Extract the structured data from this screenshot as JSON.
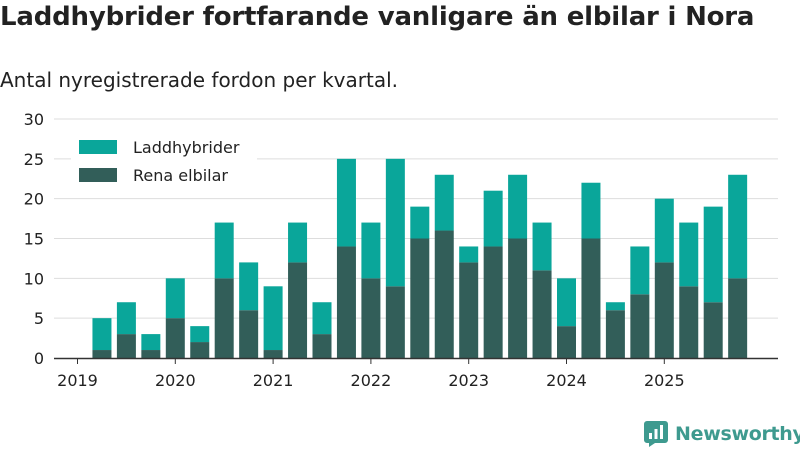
{
  "title": "Laddhybrider fortfarande vanligare än elbilar i Nora",
  "subtitle": "Antal nyregistrerade fordon per kvartal.",
  "brand": "Newsworthy",
  "colors": {
    "hybrid": "#0aa69a",
    "electric": "#325e59",
    "grid": "#dddddd",
    "axis": "#333333",
    "text": "#222222",
    "brand": "#3e9a8f"
  },
  "chart_data": {
    "type": "bar",
    "stacked": true,
    "title": "Laddhybrider fortfarande vanligare än elbilar i Nora",
    "subtitle": "Antal nyregistrerade fordon per kvartal.",
    "xlabel": "",
    "ylabel": "",
    "ylim": [
      0,
      30
    ],
    "yticks": [
      0,
      5,
      10,
      15,
      20,
      25,
      30
    ],
    "grid": true,
    "legend_position": "top-left",
    "x_tick_labels": [
      "2019",
      "2020",
      "2021",
      "2022",
      "2023",
      "2024",
      "2025"
    ],
    "categories": [
      "2019 Q1",
      "2019 Q2",
      "2019 Q3",
      "2019 Q4",
      "2020 Q1",
      "2020 Q2",
      "2020 Q3",
      "2020 Q4",
      "2021 Q1",
      "2021 Q2",
      "2021 Q3",
      "2021 Q4",
      "2022 Q1",
      "2022 Q2",
      "2022 Q3",
      "2022 Q4",
      "2023 Q1",
      "2023 Q2",
      "2023 Q3",
      "2023 Q4",
      "2024 Q1",
      "2024 Q2",
      "2024 Q3",
      "2024 Q4",
      "2025 Q1",
      "2025 Q2",
      "2025 Q3",
      "2025 Q4"
    ],
    "series": [
      {
        "name": "Rena elbilar",
        "values": [
          0,
          1,
          3,
          1,
          5,
          2,
          10,
          6,
          1,
          12,
          3,
          14,
          10,
          9,
          15,
          16,
          12,
          14,
          15,
          11,
          4,
          15,
          6,
          8,
          12,
          9,
          7,
          10
        ]
      },
      {
        "name": "Laddhybrider",
        "values": [
          0,
          4,
          4,
          2,
          5,
          2,
          7,
          6,
          8,
          5,
          4,
          11,
          7,
          16,
          4,
          7,
          2,
          7,
          8,
          6,
          6,
          7,
          1,
          6,
          8,
          8,
          12,
          13
        ]
      }
    ]
  }
}
